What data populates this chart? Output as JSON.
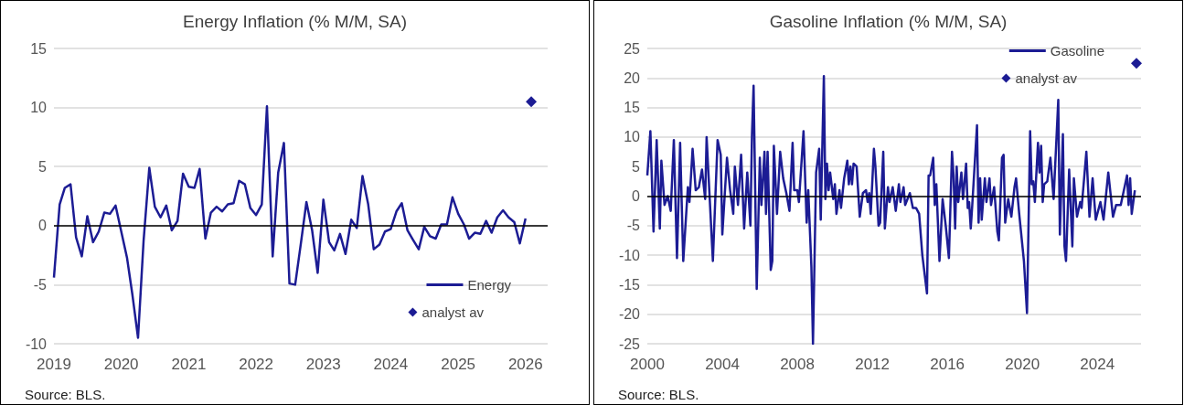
{
  "chart_data": [
    {
      "type": "line",
      "title": "Energy Inflation (% M/M, SA)",
      "annotations": [
        "Source: BLS."
      ],
      "xlim": [
        "2019-01",
        "2026-05"
      ],
      "xticks": [
        {
          "value": "2019",
          "label": "2019"
        },
        {
          "value": "2020",
          "label": "2020"
        },
        {
          "value": "2021",
          "label": "2021"
        },
        {
          "value": "2022",
          "label": "2022"
        },
        {
          "value": "2023",
          "label": "2023"
        },
        {
          "value": "2024",
          "label": "2024"
        },
        {
          "value": "2025",
          "label": "2025"
        },
        {
          "value": "2026",
          "label": "2026"
        }
      ],
      "ylim": [
        -10,
        15
      ],
      "yticks": [
        -10,
        -5,
        0,
        5,
        10,
        15
      ],
      "grid": "y",
      "legend": "bottom right",
      "ref_lines": [
        {
          "axis": "y",
          "value": 0,
          "color": "#000000"
        }
      ],
      "series": [
        {
          "name": "Energy",
          "type": "line",
          "color": "#1c1c94",
          "marker": "none",
          "x": [
            "2019-01",
            "2019-02",
            "2019-03",
            "2019-04",
            "2019-05",
            "2019-06",
            "2019-07",
            "2019-08",
            "2019-09",
            "2019-10",
            "2019-11",
            "2019-12",
            "2020-01",
            "2020-02",
            "2020-03",
            "2020-04",
            "2020-05",
            "2020-06",
            "2020-07",
            "2020-08",
            "2020-09",
            "2020-10",
            "2020-11",
            "2020-12",
            "2021-01",
            "2021-02",
            "2021-03",
            "2021-04",
            "2021-05",
            "2021-06",
            "2021-07",
            "2021-08",
            "2021-09",
            "2021-10",
            "2021-11",
            "2021-12",
            "2022-01",
            "2022-02",
            "2022-03",
            "2022-04",
            "2022-05",
            "2022-06",
            "2022-07",
            "2022-08",
            "2022-09",
            "2022-10",
            "2022-11",
            "2022-12",
            "2023-01",
            "2023-02",
            "2023-03",
            "2023-04",
            "2023-05",
            "2023-06",
            "2023-07",
            "2023-08",
            "2023-09",
            "2023-10",
            "2023-11",
            "2023-12",
            "2024-01",
            "2024-02",
            "2024-03",
            "2024-04",
            "2024-05",
            "2024-06",
            "2024-07",
            "2024-08",
            "2024-09",
            "2024-10",
            "2024-11",
            "2024-12",
            "2025-01",
            "2025-02",
            "2025-03",
            "2025-04",
            "2025-05",
            "2025-06",
            "2025-07",
            "2025-08",
            "2025-09",
            "2025-10",
            "2025-11",
            "2025-12",
            "2026-01"
          ],
          "values": [
            -4.4,
            1.8,
            3.2,
            3.5,
            -1.0,
            -2.6,
            0.8,
            -1.4,
            -0.5,
            1.1,
            1.0,
            1.7,
            -0.5,
            -2.7,
            -5.8,
            -9.5,
            -1.3,
            4.9,
            1.6,
            0.7,
            1.7,
            -0.4,
            0.4,
            4.4,
            3.3,
            3.2,
            4.8,
            -1.1,
            1.1,
            1.6,
            1.2,
            1.8,
            1.9,
            3.8,
            3.5,
            1.5,
            0.9,
            1.8,
            10.1,
            -2.6,
            4.5,
            7.0,
            -4.9,
            -5.0,
            -1.5,
            2.0,
            -0.4,
            -4.0,
            2.2,
            -1.4,
            -2.1,
            -0.7,
            -2.4,
            0.5,
            -0.2,
            4.2,
            1.8,
            -2.0,
            -1.6,
            -0.5,
            -0.3,
            1.2,
            1.9,
            -0.4,
            -1.2,
            -2.0,
            -0.1,
            -0.9,
            -1.1,
            0.1,
            0.1,
            2.4,
            1.0,
            0.1,
            -1.1,
            -0.6,
            -0.7,
            0.4,
            -0.6,
            0.7,
            1.3,
            0.7,
            0.3,
            -1.5,
            0.6
          ]
        },
        {
          "name": "analyst av",
          "type": "scatter",
          "color": "#1c1c94",
          "marker": "diamond",
          "x": [
            "2026-02"
          ],
          "values": [
            10.5
          ]
        }
      ]
    },
    {
      "type": "line",
      "title": "Gasoline Inflation (% M/M, SA)",
      "annotations": [
        "Source: BLS."
      ],
      "xlim": [
        "2000-01",
        "2026-05"
      ],
      "xticks": [
        {
          "value": "2000",
          "label": "2000"
        },
        {
          "value": "2004",
          "label": "2004"
        },
        {
          "value": "2008",
          "label": "2008"
        },
        {
          "value": "2012",
          "label": "2012"
        },
        {
          "value": "2016",
          "label": "2016"
        },
        {
          "value": "2020",
          "label": "2020"
        },
        {
          "value": "2024",
          "label": "2024"
        }
      ],
      "ylim": [
        -25,
        25
      ],
      "yticks": [
        -25,
        -20,
        -15,
        -10,
        -5,
        0,
        5,
        10,
        15,
        20,
        25
      ],
      "grid": "y",
      "legend": "top right",
      "ref_lines": [
        {
          "axis": "y",
          "value": 0,
          "color": "#000000"
        }
      ],
      "series": [
        {
          "name": "Gasoline",
          "type": "line",
          "color": "#1c1c94",
          "marker": "none",
          "x": [
            "2000-01",
            "2000-03",
            "2000-05",
            "2000-07",
            "2000-09",
            "2000-10",
            "2000-12",
            "2001-02",
            "2001-04",
            "2001-06",
            "2001-08",
            "2001-10",
            "2001-12",
            "2002-03",
            "2002-04",
            "2002-06",
            "2002-08",
            "2002-10",
            "2002-12",
            "2003-02",
            "2003-03",
            "2003-07",
            "2003-10",
            "2003-12",
            "2004-01",
            "2004-04",
            "2004-06",
            "2004-08",
            "2004-09",
            "2004-11",
            "2005-01",
            "2005-03",
            "2005-05",
            "2005-07",
            "2005-08",
            "2005-09",
            "2005-11",
            "2006-01",
            "2006-02",
            "2006-04",
            "2006-05",
            "2006-06",
            "2006-08",
            "2006-09",
            "2006-10",
            "2006-12",
            "2007-02",
            "2007-04",
            "2007-06",
            "2007-08",
            "2007-10",
            "2007-11",
            "2008-01",
            "2008-02",
            "2008-05",
            "2008-07",
            "2008-08",
            "2008-10",
            "2008-11",
            "2009-01",
            "2009-03",
            "2009-04",
            "2009-06",
            "2009-07",
            "2009-08",
            "2009-09",
            "2009-10",
            "2009-12",
            "2010-01",
            "2010-02",
            "2010-04",
            "2010-05",
            "2010-07",
            "2010-09",
            "2010-10",
            "2010-11",
            "2010-12",
            "2011-01",
            "2011-03",
            "2011-05",
            "2011-07",
            "2011-09",
            "2011-10",
            "2011-11",
            "2011-12",
            "2012-02",
            "2012-03",
            "2012-05",
            "2012-06",
            "2012-08",
            "2012-09",
            "2012-11",
            "2012-12",
            "2013-02",
            "2013-04",
            "2013-06",
            "2013-07",
            "2013-09",
            "2013-10",
            "2014-01",
            "2014-03",
            "2014-05",
            "2014-07",
            "2014-09",
            "2014-12",
            "2015-01",
            "2015-02",
            "2015-04",
            "2015-05",
            "2015-06",
            "2015-08",
            "2015-10",
            "2015-12",
            "2016-02",
            "2016-04",
            "2016-05",
            "2016-06",
            "2016-07",
            "2016-08",
            "2016-10",
            "2016-11",
            "2017-01",
            "2017-02",
            "2017-03",
            "2017-04",
            "2017-05",
            "2017-08",
            "2017-09",
            "2017-10",
            "2017-11",
            "2018-01",
            "2018-02",
            "2018-04",
            "2018-05",
            "2018-07",
            "2018-09",
            "2018-10",
            "2018-12",
            "2019-01",
            "2019-02",
            "2019-04",
            "2019-06",
            "2019-08",
            "2019-09",
            "2019-11",
            "2020-02",
            "2020-04",
            "2020-06",
            "2020-07",
            "2020-08",
            "2020-09",
            "2020-11",
            "2020-12",
            "2021-01",
            "2021-02",
            "2021-03",
            "2021-05",
            "2021-07",
            "2021-09",
            "2021-12",
            "2022-01",
            "2022-03",
            "2022-04",
            "2022-05",
            "2022-07",
            "2022-09",
            "2022-10",
            "2022-12",
            "2023-02",
            "2023-03",
            "2023-06",
            "2023-08",
            "2023-10",
            "2023-12",
            "2024-03",
            "2024-05",
            "2024-08",
            "2024-11",
            "2025-01",
            "2025-04",
            "2025-08",
            "2025-09",
            "2025-10",
            "2025-11",
            "2026-01"
          ],
          "values": [
            3.5,
            11,
            -6,
            9.5,
            -5.5,
            6,
            -1.5,
            0,
            -2.5,
            9.5,
            -10.5,
            9,
            -11,
            1.5,
            -1,
            8,
            1,
            1.5,
            4.5,
            -0.5,
            10,
            -11,
            9.5,
            7,
            -6.5,
            6.5,
            1,
            -3,
            5,
            -1.5,
            7,
            -5.5,
            4,
            -5,
            10.5,
            18.7,
            -15.7,
            6.5,
            -1.5,
            7.5,
            -3,
            7.5,
            -12.5,
            -11,
            8.5,
            -3,
            7.5,
            3,
            0.5,
            -2.5,
            9,
            1,
            1,
            -1,
            11,
            -4.5,
            1,
            -12,
            -25,
            4,
            8,
            -4,
            20.3,
            -0.5,
            5.5,
            1,
            4,
            -0.5,
            2,
            -3,
            1,
            -2,
            3,
            6,
            2,
            5,
            2,
            5.5,
            5,
            -3.5,
            0.5,
            1,
            -1,
            0.5,
            -3,
            8,
            5,
            -5,
            -4.5,
            7.5,
            -5.5,
            1.5,
            -1,
            1.5,
            -2.5,
            2,
            -1,
            1.5,
            -1.5,
            0.5,
            -2,
            -2,
            -3,
            -10,
            -16.5,
            3.5,
            3.5,
            6.5,
            -1.5,
            2,
            -11,
            -0.5,
            -5,
            -10.5,
            7.5,
            3.5,
            -5.5,
            5,
            -1,
            4,
            -0.5,
            5.5,
            -2,
            -1,
            -5.5,
            -1.5,
            12,
            -4.5,
            3,
            -4,
            3,
            -1,
            3,
            -1.5,
            1.5,
            -6,
            -7.5,
            6.5,
            7,
            -4.5,
            -0.5,
            -3.5,
            1.5,
            3,
            -3,
            -11,
            -19.8,
            11,
            2,
            2.5,
            -1,
            9,
            4,
            8.5,
            -1,
            2,
            2.5,
            6.5,
            -0.5,
            16.3,
            -6.5,
            10.5,
            -8.5,
            -11,
            4.5,
            -8.5,
            3,
            -3.5,
            -1,
            -2,
            7.5,
            -3.5,
            3,
            -4,
            -1,
            -4,
            4,
            -3.5,
            -1.5,
            -1.5,
            3.5,
            -1.5,
            3,
            -3,
            1
          ]
        },
        {
          "name": "analyst av",
          "type": "scatter",
          "color": "#1c1c94",
          "marker": "diamond",
          "x": [
            "2026-02"
          ],
          "values": [
            22.5
          ]
        }
      ]
    }
  ]
}
